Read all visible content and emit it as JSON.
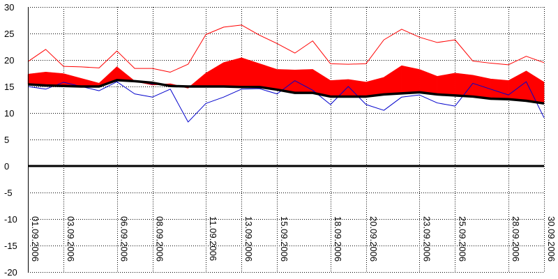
{
  "chart_data": {
    "type": "line",
    "title": "",
    "xlabel": "",
    "ylabel": "",
    "ylim": [
      -20,
      30
    ],
    "grid": true,
    "y_ticks": [
      30,
      25,
      20,
      15,
      10,
      5,
      0,
      -5,
      -10,
      -15,
      -20
    ],
    "x_dates": [
      "01.09.2006",
      "02.09.2006",
      "03.09.2006",
      "04.09.2006",
      "05.09.2006",
      "06.09.2006",
      "07.09.2006",
      "08.09.2006",
      "09.09.2006",
      "10.09.2006",
      "11.09.2006",
      "12.09.2006",
      "13.09.2006",
      "14.09.2006",
      "15.09.2006",
      "16.09.2006",
      "17.09.2006",
      "18.09.2006",
      "19.09.2006",
      "20.09.2006",
      "21.09.2006",
      "22.09.2006",
      "23.09.2006",
      "24.09.2006",
      "25.09.2006",
      "26.09.2006",
      "27.09.2006",
      "28.09.2006",
      "29.09.2006",
      "30.09.2006"
    ],
    "x_tick_labels": [
      "01.09.2006",
      "03.09.2006",
      "06.09.2006",
      "08.09.2006",
      "11.09.2006",
      "13.09.2006",
      "15.09.2006",
      "18.09.2006",
      "20.09.2006",
      "23.09.2006",
      "25.09.2006",
      "28.09.2006",
      "30.09.2006"
    ],
    "series": [
      {
        "key": "mean",
        "values": [
          17.3,
          17.7,
          17.4,
          16.5,
          15.6,
          18.7,
          16.0,
          15.3,
          15.5,
          14.7,
          17.5,
          19.5,
          20.4,
          19.3,
          18.2,
          18.1,
          18.2,
          16.1,
          16.3,
          15.8,
          16.7,
          18.9,
          18.2,
          16.9,
          17.5,
          17.1,
          16.4,
          16.1,
          17.9,
          15.8
        ],
        "color": "#ff0000"
      },
      {
        "key": "max",
        "values": [
          19.7,
          22.0,
          18.8,
          18.7,
          18.5,
          21.7,
          18.4,
          18.4,
          17.7,
          19.2,
          24.8,
          26.2,
          26.6,
          24.7,
          23.1,
          21.3,
          23.6,
          19.3,
          19.2,
          19.3,
          23.8,
          25.8,
          24.3,
          23.3,
          23.8,
          19.8,
          19.4,
          19.1,
          20.7,
          19.5
        ],
        "color": "#ff0000"
      },
      {
        "key": "min",
        "values": [
          15.0,
          14.5,
          15.8,
          15.0,
          14.2,
          15.9,
          13.6,
          13.0,
          14.5,
          8.3,
          11.8,
          13.0,
          14.5,
          14.6,
          13.6,
          16.1,
          14.3,
          11.6,
          15.0,
          11.6,
          10.5,
          13.0,
          13.4,
          11.9,
          11.3,
          15.6,
          14.5,
          13.4,
          15.9,
          9.1
        ],
        "color": "#0000cc"
      },
      {
        "key": "normal",
        "values": [
          15.4,
          15.2,
          15.1,
          15.0,
          15.0,
          16.2,
          16.0,
          15.7,
          15.1,
          15.0,
          15.0,
          15.0,
          14.9,
          14.9,
          14.4,
          13.8,
          13.8,
          13.1,
          13.1,
          13.1,
          13.5,
          13.7,
          13.9,
          13.5,
          13.3,
          13.1,
          12.7,
          12.6,
          12.3,
          11.8
        ],
        "color": "#000000"
      }
    ],
    "zero_line": 0,
    "colors": {
      "above_fill": "#ff0000",
      "below_fill": "#000099",
      "grid": "#000000"
    }
  }
}
